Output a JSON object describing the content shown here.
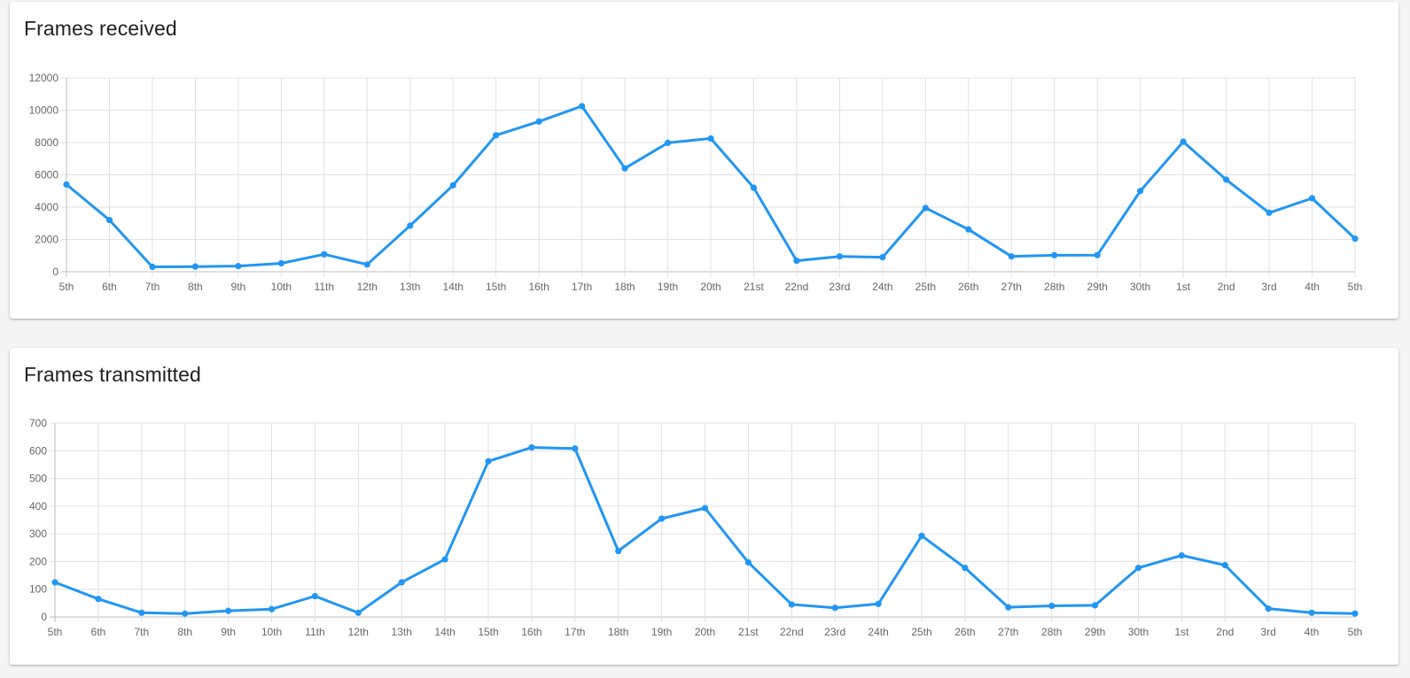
{
  "chart_data": [
    {
      "type": "line",
      "title": "Frames received",
      "xlabel": "",
      "ylabel": "",
      "categories": [
        "5th",
        "6th",
        "7th",
        "8th",
        "9th",
        "10th",
        "11th",
        "12th",
        "13th",
        "14th",
        "15th",
        "16th",
        "17th",
        "18th",
        "19th",
        "20th",
        "21st",
        "22nd",
        "23rd",
        "24th",
        "25th",
        "26th",
        "27th",
        "28th",
        "29th",
        "30th",
        "1st",
        "2nd",
        "3rd",
        "4th",
        "5th"
      ],
      "series": [
        {
          "values": [
            5400,
            3200,
            300,
            320,
            350,
            520,
            1080,
            450,
            2850,
            5350,
            8450,
            9300,
            10250,
            6400,
            7980,
            8250,
            5200,
            680,
            950,
            900,
            3950,
            2620,
            950,
            1020,
            1030,
            5000,
            8050,
            5700,
            3650,
            4550,
            2050
          ]
        }
      ],
      "yticks": [
        "0",
        "2000",
        "4000",
        "6000",
        "8000",
        "10000",
        "12000"
      ],
      "ylim": [
        0,
        12000
      ],
      "grid": true,
      "legend": "none",
      "color": "#2196f3"
    },
    {
      "type": "line",
      "title": "Frames transmitted",
      "xlabel": "",
      "ylabel": "",
      "categories": [
        "5th",
        "6th",
        "7th",
        "8th",
        "9th",
        "10th",
        "11th",
        "12th",
        "13th",
        "14th",
        "15th",
        "16th",
        "17th",
        "18th",
        "19th",
        "20th",
        "21st",
        "22nd",
        "23rd",
        "24th",
        "25th",
        "26th",
        "27th",
        "28th",
        "29th",
        "30th",
        "1st",
        "2nd",
        "3rd",
        "4th",
        "5th"
      ],
      "series": [
        {
          "values": [
            125,
            65,
            15,
            12,
            22,
            28,
            75,
            15,
            125,
            208,
            562,
            612,
            608,
            238,
            355,
            393,
            197,
            45,
            33,
            47,
            293,
            177,
            35,
            40,
            42,
            177,
            222,
            187,
            30,
            15,
            12
          ]
        }
      ],
      "yticks": [
        "0",
        "100",
        "200",
        "300",
        "400",
        "500",
        "600",
        "700"
      ],
      "ylim": [
        0,
        700
      ],
      "grid": true,
      "legend": "none",
      "color": "#2196f3"
    }
  ]
}
